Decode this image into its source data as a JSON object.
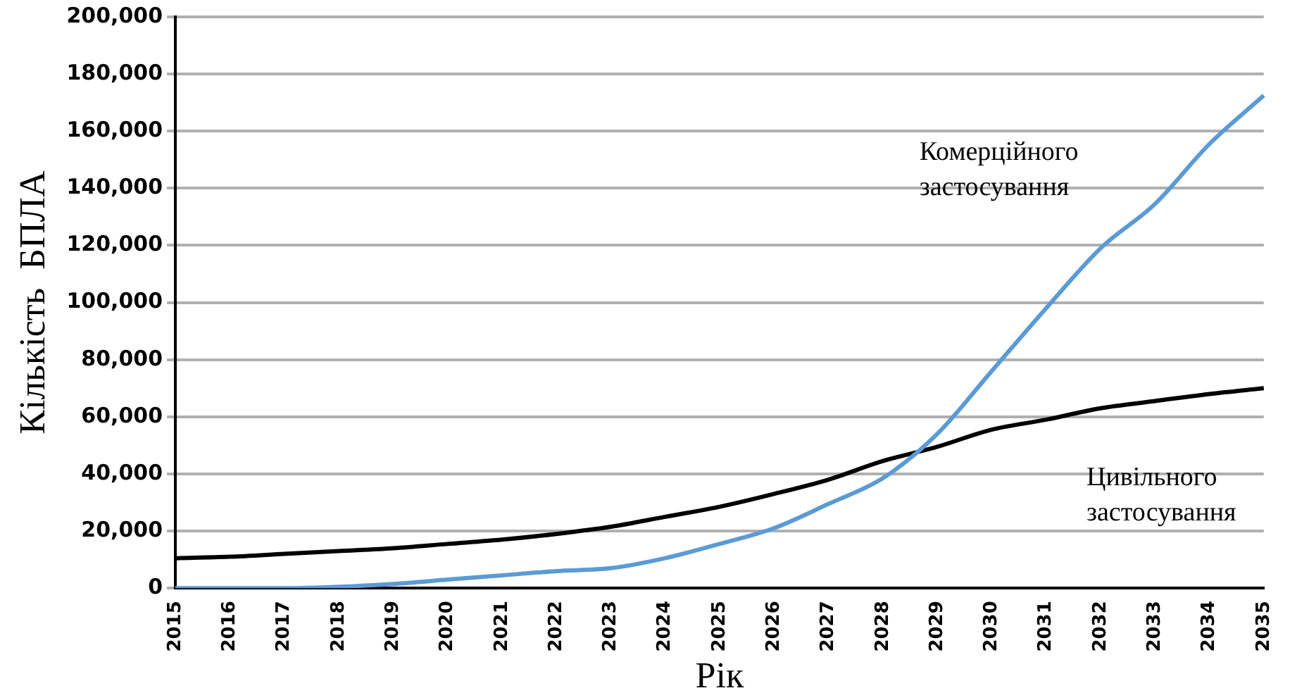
{
  "chart_data": {
    "type": "line",
    "xlabel": "Рік",
    "ylabel": "Кількість  БПЛА",
    "categories": [
      "2015",
      "2016",
      "2017",
      "2018",
      "2019",
      "2020",
      "2021",
      "2022",
      "2023",
      "2024",
      "2025",
      "2026",
      "2027",
      "2028",
      "2029",
      "2030",
      "2031",
      "2032",
      "2033",
      "2034",
      "2035"
    ],
    "series": [
      {
        "name": "Комерційного застосування",
        "color": "#5b9bd5",
        "values": [
          0,
          0,
          0,
          500,
          1500,
          3000,
          4500,
          6000,
          7000,
          10500,
          15500,
          21000,
          29500,
          38500,
          54000,
          76000,
          98000,
          119000,
          134500,
          155500,
          172500
        ]
      },
      {
        "name": "Цивільного застосування",
        "color": "#000000",
        "values": [
          10500,
          11000,
          12000,
          13000,
          14000,
          15500,
          17000,
          19000,
          21500,
          25000,
          28500,
          33000,
          38000,
          44500,
          49500,
          55500,
          59000,
          63000,
          65500,
          68000,
          70000
        ]
      }
    ],
    "ylim": [
      0,
      200000
    ],
    "yticks": [
      0,
      {
        "value": 20000,
        "label": "20,000"
      },
      {
        "value": 40000,
        "label": "40,000"
      },
      {
        "value": 60000,
        "label": "60,000"
      },
      {
        "value": 80000,
        "label": "80,000"
      },
      {
        "value": 100000,
        "label": "100,000"
      },
      {
        "value": 120000,
        "label": "120,000"
      },
      {
        "value": 140000,
        "label": "140,000"
      },
      {
        "value": 160000,
        "label": "160,000"
      },
      {
        "value": 180000,
        "label": "180,000"
      },
      {
        "value": 200000,
        "label": "200,000"
      }
    ],
    "grid": "y",
    "legend": false,
    "marker": "none",
    "line_style": "solid"
  }
}
